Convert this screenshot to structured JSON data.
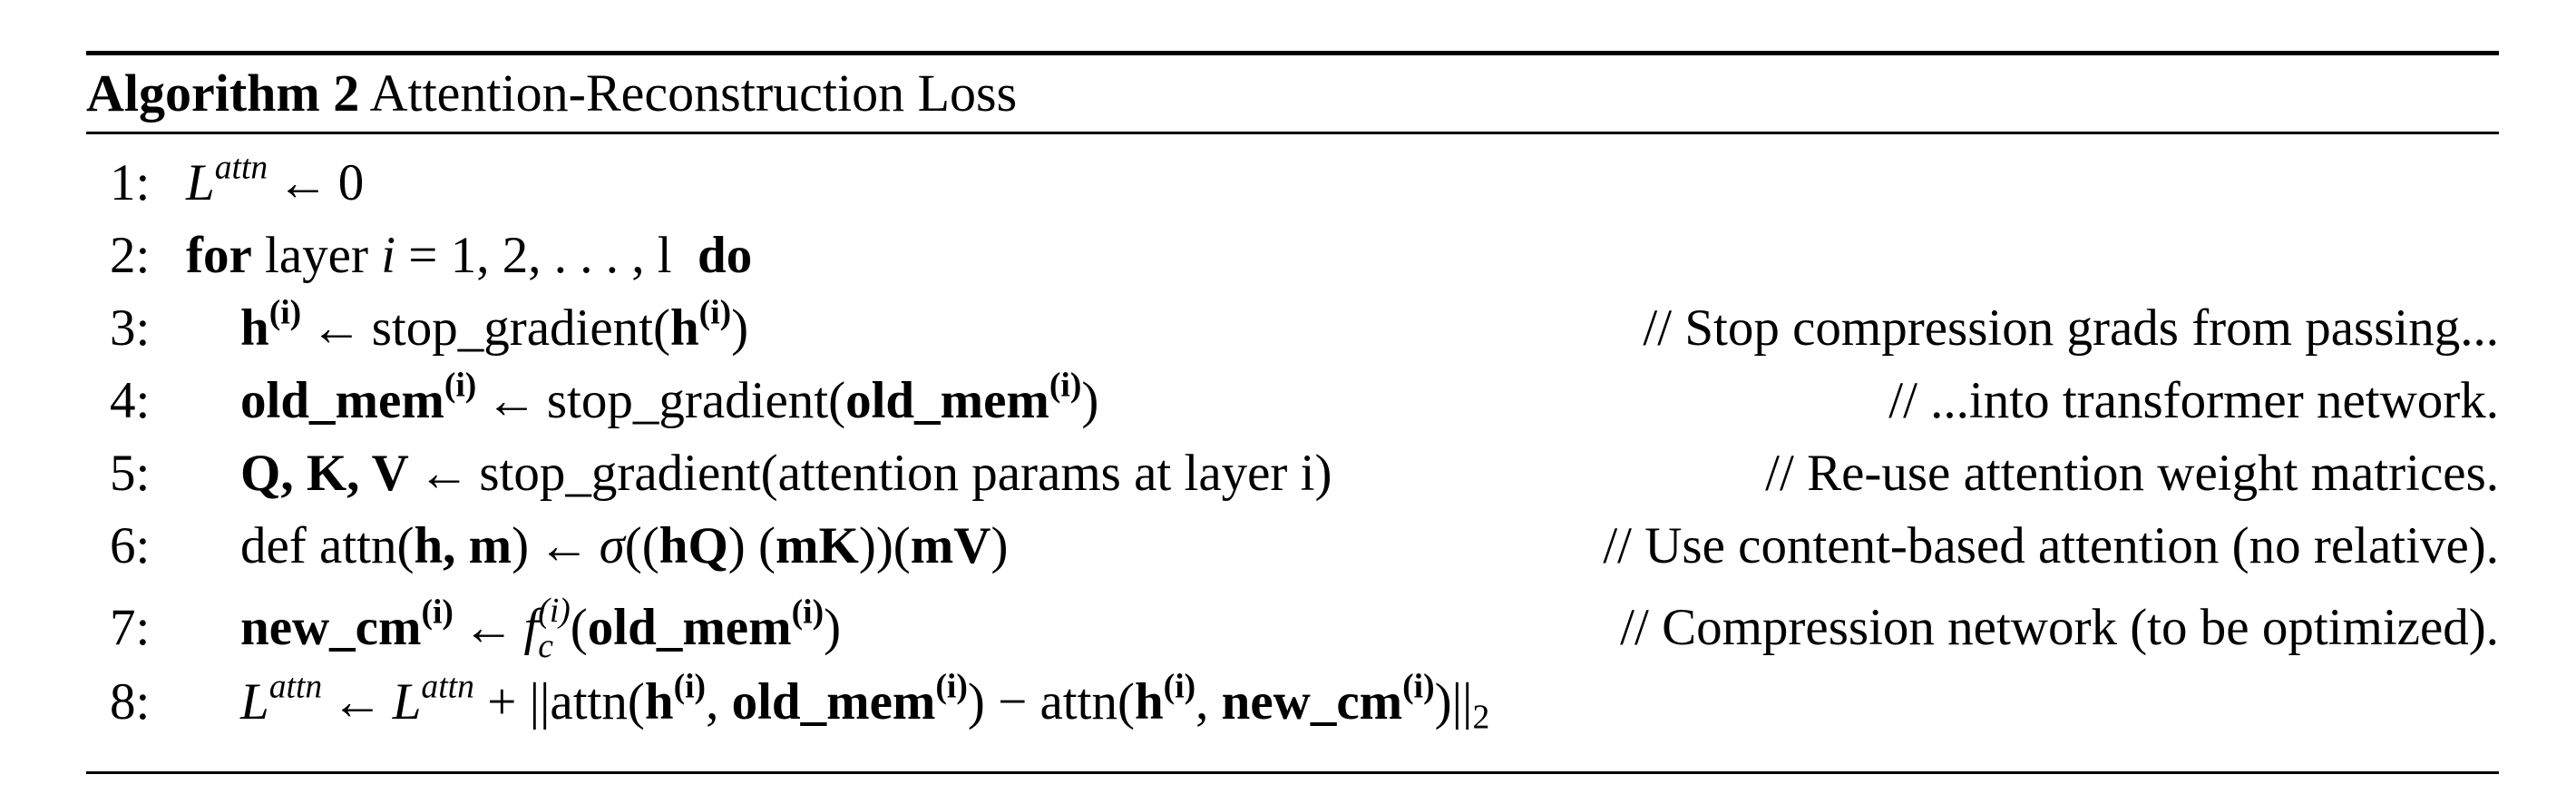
{
  "algorithm": {
    "label": "Algorithm 2",
    "title": "Attention-Reconstruction Loss"
  },
  "lines": [
    {
      "num": "1:",
      "L": "L",
      "attn_sup": "attn",
      "arrow": "←",
      "zero": "0"
    },
    {
      "num": "2:",
      "for": "for",
      "layer": "layer",
      "i": "i",
      "range": "= 1, 2, . . . , l",
      "do": "do"
    },
    {
      "num": "3:",
      "h": "h",
      "i_sup": "(i)",
      "arrow": "←",
      "sg": "stop_gradient(",
      "h2": "h",
      "i_sup2": "(i)",
      "close": ")",
      "comment": "// Stop compression grads from passing..."
    },
    {
      "num": "4:",
      "om": "old_mem",
      "i_sup": "(i)",
      "arrow": "←",
      "sg": "stop_gradient(",
      "om2": "old_mem",
      "i_sup2": "(i)",
      "close": ")",
      "comment": "// ...into transformer network."
    },
    {
      "num": "5:",
      "qkv": "Q, K, V",
      "arrow": "←",
      "rest": "stop_gradient(attention params at layer i)",
      "comment": "// Re-use attention weight matrices."
    },
    {
      "num": "6:",
      "def": "def attn(",
      "hm": "h, m",
      "close": ")",
      "arrow": "←",
      "sigma": "σ",
      "p1": "((",
      "hq": "hQ",
      "p2": ") (",
      "mk": "mK",
      "p3": "))(",
      "mv": "mV",
      "p4": ")",
      "comment": "// Use content-based attention (no relative)."
    },
    {
      "num": "7:",
      "ncm": "new_cm",
      "i_sup": "(i)",
      "arrow": "←",
      "f": "f",
      "f_sup": "(i)",
      "f_sub": "c",
      "open": "(",
      "om": "old_mem",
      "i_sup2": "(i)",
      "close": ")",
      "comment": "// Compression network (to be optimized)."
    },
    {
      "num": "8:",
      "L": "L",
      "attn_sup": "attn",
      "arrow": "←",
      "L2": "L",
      "attn_sup2": "attn",
      "plus": "+ ||attn(",
      "h": "h",
      "i_sup": "(i)",
      "comma1": ", ",
      "om": "old_mem",
      "i_sup2": "(i)",
      "minus": ") − attn(",
      "h2": "h",
      "i_sup3": "(i)",
      "comma2": ", ",
      "ncm": "new_cm",
      "i_sup4": "(i)",
      "end": ")||",
      "sub2": "2"
    }
  ]
}
